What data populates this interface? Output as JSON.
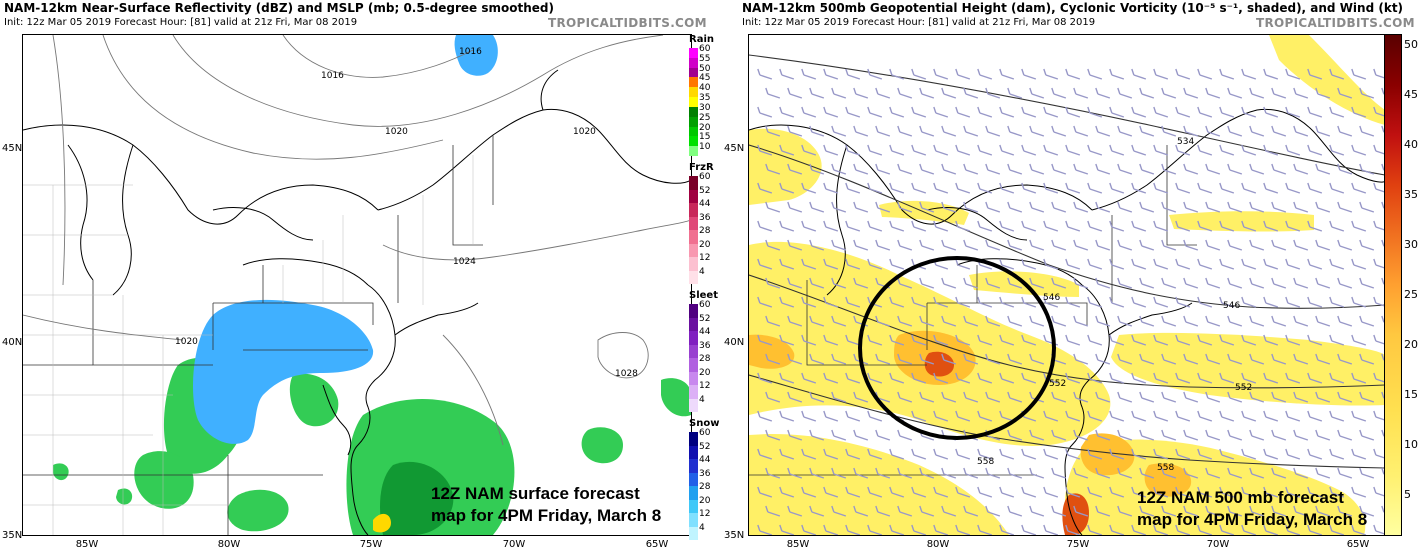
{
  "left_panel": {
    "title": "NAM-12km Near-Surface Reflectivity (dBZ) and MSLP (mb; 0.5-degree smoothed)",
    "subtitle": "Init: 12z Mar 05 2019   Forecast Hour: [81]   valid at 21z Fri, Mar 08 2019",
    "brand": "TROPICALTIDBITS.COM",
    "caption_line1": "12Z NAM surface forecast",
    "caption_line2": "map for 4PM Friday, March 8",
    "isobar_labels": [
      "1016",
      "1016",
      "1020",
      "1020",
      "1024",
      "1028",
      "1020"
    ],
    "lat_labels": [
      "45N",
      "40N",
      "35N"
    ],
    "lon_labels": [
      "85W",
      "80W",
      "75W",
      "70W",
      "65W"
    ],
    "legend": [
      {
        "name": "Rain",
        "ticks": [
          "60",
          "55",
          "50",
          "45",
          "40",
          "35",
          "30",
          "25",
          "20",
          "15",
          "10"
        ],
        "colors": [
          "#ff00ff",
          "#d000c8",
          "#a00090",
          "#ff7700",
          "#ffd800",
          "#ffff00",
          "#008000",
          "#00a000",
          "#00c800",
          "#00e000",
          "#80ff80"
        ]
      },
      {
        "name": "FrzR",
        "ticks": [
          "60",
          "52",
          "44",
          "36",
          "28",
          "20",
          "12",
          "4"
        ],
        "colors": [
          "#7a0028",
          "#a00040",
          "#c8285a",
          "#e04878",
          "#f07090",
          "#f898b0",
          "#fcc0d0",
          "#ffe0e8"
        ]
      },
      {
        "name": "Sleet",
        "ticks": [
          "60",
          "52",
          "44",
          "36",
          "28",
          "20",
          "12",
          "4"
        ],
        "colors": [
          "#500080",
          "#6a10a0",
          "#8020c0",
          "#9840d0",
          "#b060e0",
          "#c888ee",
          "#dcb0f6",
          "#eedafc"
        ]
      },
      {
        "name": "Snow",
        "ticks": [
          "60",
          "52",
          "44",
          "36",
          "28",
          "20",
          "12",
          "4"
        ],
        "colors": [
          "#000080",
          "#1010b0",
          "#2030d0",
          "#2060e8",
          "#20a0f0",
          "#40c8f8",
          "#80e0ff",
          "#c0f4ff"
        ]
      }
    ]
  },
  "right_panel": {
    "title": "NAM-12km 500mb Geopotential Height (dam), Cyclonic Vorticity (10⁻⁵ s⁻¹, shaded), and Wind (kt)",
    "subtitle": "Init: 12z Mar 05 2019   Forecast Hour: [81]   valid at 21z Fri, Mar 08 2019",
    "brand": "TROPICALTIDBITS.COM",
    "caption_line1": "12Z NAM 500 mb forecast",
    "caption_line2": "map for 4PM Friday, March 8",
    "height_labels": [
      "534",
      "546",
      "546",
      "552",
      "552",
      "558",
      "558"
    ],
    "lat_labels": [
      "45N",
      "40N",
      "35N"
    ],
    "lon_labels": [
      "85W",
      "80W",
      "75W",
      "70W",
      "65W"
    ],
    "colorbar_ticks": [
      "50",
      "45",
      "40",
      "35",
      "30",
      "25",
      "20",
      "15",
      "10",
      "5"
    ]
  },
  "colors": {
    "snow": "#40b0ff",
    "rain": "#33cc55",
    "rain_heavy": "#119933",
    "vorticity_low": "#fff066",
    "vorticity_mid": "#ffc030",
    "vorticity_high": "#e05010",
    "barb": "#9898c8",
    "circle": "#000000"
  }
}
